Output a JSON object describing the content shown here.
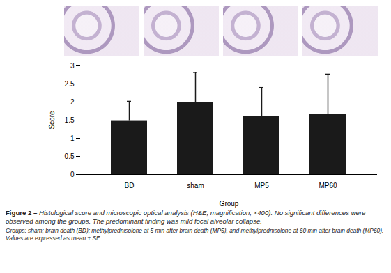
{
  "chart_data": {
    "type": "bar",
    "categories": [
      "BD",
      "sham",
      "MP5",
      "MP60"
    ],
    "values": [
      1.47,
      2.0,
      1.6,
      1.67
    ],
    "errors": [
      0.55,
      0.82,
      0.8,
      1.1
    ],
    "color": "#1a1a1a",
    "x_label": "Group",
    "y_label": "Score",
    "ylim": [
      0,
      3
    ],
    "yticks": [
      0,
      0.5,
      1,
      1.5,
      2,
      2.5,
      3
    ],
    "grid": false,
    "caption_label": "Figure 2 –",
    "caption": "Histological score and microscopic optical analysis (H&E; magnification, ×400). No significant differences were observed among the groups. The predominant finding was mild focal alveolar collapse.",
    "caption_note": "Groups: sham; brain death (BD); methylprednisolone at 5 min after brain death (MP5), and methylprednisolone at 60 min after brain death (MP60). Values are expressed as mean ± SE."
  }
}
